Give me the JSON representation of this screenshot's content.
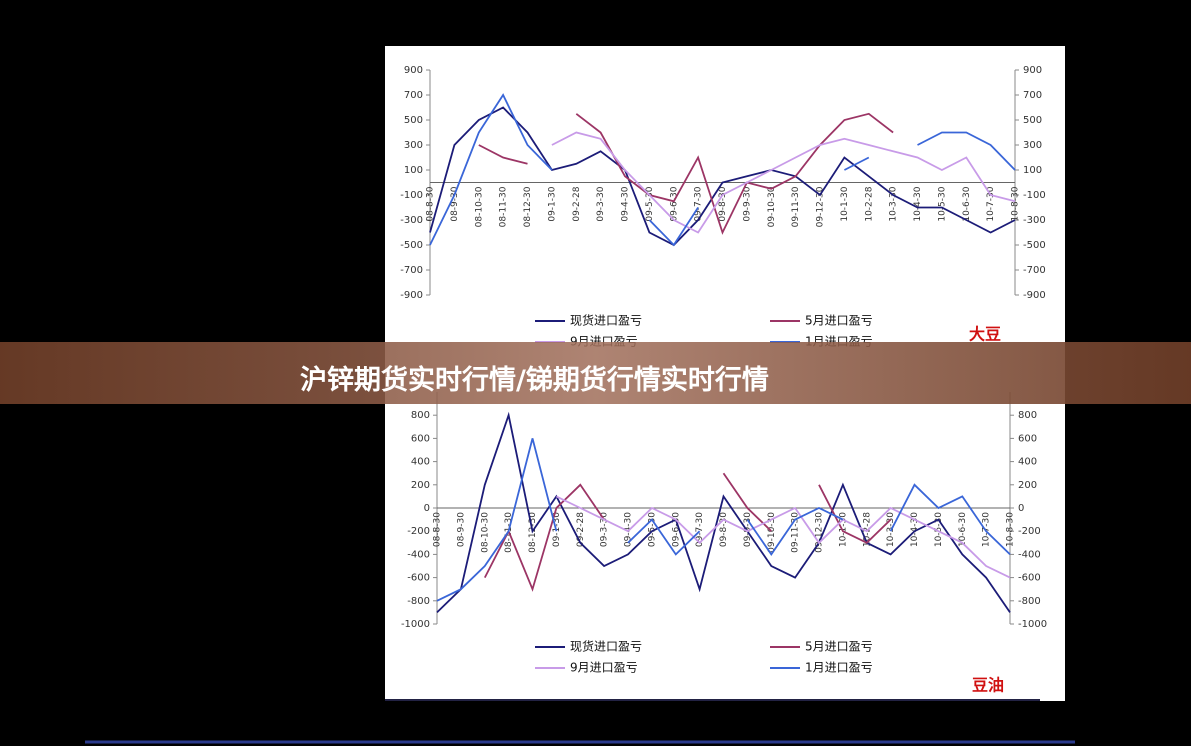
{
  "banner_title": "沪锌期货实时行情/锑期货行情实时行情",
  "chart_data": [
    {
      "type": "line",
      "annotation": "大豆",
      "categories": [
        "08-8-30",
        "08-9-30",
        "08-10-30",
        "08-11-30",
        "08-12-30",
        "09-1-30",
        "09-2-28",
        "09-3-30",
        "09-4-30",
        "09-5-30",
        "09-6-30",
        "09-7-30",
        "09-8-30",
        "09-9-30",
        "09-10-30",
        "09-11-30",
        "09-12-30",
        "10-1-30",
        "10-2-28",
        "10-3-30",
        "10-4-30",
        "10-5-30",
        "10-6-30",
        "10-7-30",
        "10-8-30"
      ],
      "ylim": [
        -900,
        900
      ],
      "yticks": [
        -900,
        -700,
        -500,
        -300,
        -100,
        100,
        300,
        500,
        700,
        900
      ],
      "series": [
        {
          "name": "现货进口盈亏",
          "color": "#1c1c78",
          "values": [
            -400,
            300,
            500,
            600,
            400,
            100,
            150,
            250,
            100,
            -400,
            -500,
            -300,
            0,
            50,
            100,
            50,
            -100,
            200,
            50,
            -100,
            -200,
            -200,
            -300,
            -400,
            -300
          ]
        },
        {
          "name": "5月进口盈亏",
          "color": "#9c3565",
          "values": [
            null,
            null,
            300,
            200,
            150,
            null,
            550,
            400,
            50,
            -100,
            -150,
            200,
            -400,
            0,
            -50,
            50,
            300,
            500,
            550,
            400,
            null,
            null,
            null,
            null,
            null
          ]
        },
        {
          "name": "9月进口盈亏",
          "color": "#c89be8",
          "values": [
            null,
            null,
            null,
            null,
            null,
            300,
            400,
            350,
            100,
            -100,
            -300,
            -400,
            -100,
            0,
            100,
            200,
            300,
            350,
            300,
            250,
            200,
            100,
            200,
            -100,
            -150
          ]
        },
        {
          "name": "1月进口盈亏",
          "color": "#3a66d8",
          "values": [
            -500,
            -100,
            400,
            700,
            300,
            100,
            null,
            null,
            null,
            -300,
            -500,
            -200,
            null,
            null,
            null,
            null,
            null,
            100,
            200,
            null,
            300,
            400,
            400,
            300,
            100
          ]
        }
      ]
    },
    {
      "type": "line",
      "annotation": "豆油",
      "categories": [
        "08-8-30",
        "08-9-30",
        "08-10-30",
        "08-11-30",
        "08-12-30",
        "09-1-30",
        "09-2-28",
        "09-3-30",
        "09-4-30",
        "09-5-30",
        "09-6-30",
        "09-7-30",
        "09-8-30",
        "09-9-30",
        "09-10-30",
        "09-11-30",
        "09-12-30",
        "10-1-30",
        "10-2-28",
        "10-3-30",
        "10-4-30",
        "10-5-30",
        "10-6-30",
        "10-7-30",
        "10-8-30"
      ],
      "ylim": [
        -1000,
        1000
      ],
      "yticks": [
        -1000,
        -800,
        -600,
        -400,
        -200,
        0,
        200,
        400,
        600,
        800
      ],
      "series": [
        {
          "name": "现货进口盈亏",
          "color": "#1c1c78",
          "values": [
            -900,
            -700,
            200,
            800,
            -200,
            100,
            -300,
            -500,
            -400,
            -200,
            -100,
            -700,
            100,
            -200,
            -500,
            -600,
            -300,
            200,
            -300,
            -400,
            -200,
            -100,
            -400,
            -600,
            -900
          ]
        },
        {
          "name": "5月进口盈亏",
          "color": "#9c3565",
          "values": [
            null,
            null,
            -600,
            -200,
            -700,
            0,
            200,
            -100,
            null,
            null,
            null,
            null,
            300,
            0,
            -200,
            null,
            200,
            -200,
            -300,
            -100,
            null,
            null,
            null,
            null,
            null
          ]
        },
        {
          "name": "9月进口盈亏",
          "color": "#c89be8",
          "values": [
            null,
            null,
            null,
            null,
            null,
            100,
            0,
            -100,
            -200,
            0,
            -100,
            -300,
            -100,
            -200,
            -100,
            0,
            -300,
            -100,
            -200,
            0,
            -100,
            -200,
            -300,
            -500,
            -600
          ]
        },
        {
          "name": "1月进口盈亏",
          "color": "#3a66d8",
          "values": [
            -800,
            -700,
            -500,
            -200,
            600,
            -200,
            null,
            null,
            -300,
            -100,
            -400,
            -200,
            null,
            -100,
            -400,
            -100,
            0,
            -100,
            null,
            -200,
            200,
            0,
            100,
            -200,
            -400
          ]
        }
      ]
    }
  ]
}
